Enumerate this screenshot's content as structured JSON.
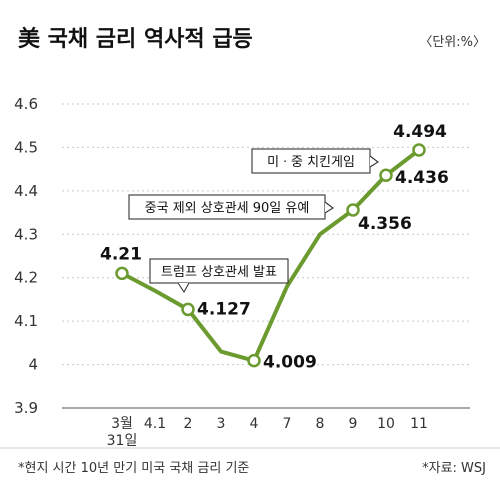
{
  "title": "美 국채 금리 역사적 급등",
  "unit": "〈단위:%〉",
  "chart_data": {
    "type": "line",
    "categories": [
      "3월 31일",
      "4.1",
      "2",
      "3",
      "4",
      "7",
      "8",
      "9",
      "10",
      "11"
    ],
    "values": [
      4.21,
      4.17,
      4.127,
      4.03,
      4.009,
      4.18,
      4.3,
      4.356,
      4.436,
      4.494
    ],
    "ylim": [
      3.9,
      4.6
    ],
    "yticks": [
      "3.9",
      "4",
      "4.1",
      "4.2",
      "4.3",
      "4.4",
      "4.5",
      "4.6"
    ],
    "ytick_values": [
      3.9,
      4.0,
      4.1,
      4.2,
      4.3,
      4.4,
      4.5,
      4.6
    ],
    "grid": true,
    "color": "#6b9a2f",
    "marked_points": [
      {
        "index": 0,
        "label": "4.21"
      },
      {
        "index": 2,
        "label": "4.127"
      },
      {
        "index": 4,
        "label": "4.009"
      },
      {
        "index": 7,
        "label": "4.356"
      },
      {
        "index": 8,
        "label": "4.436"
      },
      {
        "index": 9,
        "label": "4.494"
      }
    ],
    "annotations": [
      {
        "index": 2,
        "text": "트럼프 상호관세 발표"
      },
      {
        "index": 7,
        "text": "중국 제외 상호관세 90일 유예"
      },
      {
        "index": 8,
        "text": "미ㆍ중 치킨게임"
      }
    ]
  },
  "footnote": "*현지 시간 10년 만기 미국 국채 금리 기준",
  "source": "*자료: WSJ"
}
